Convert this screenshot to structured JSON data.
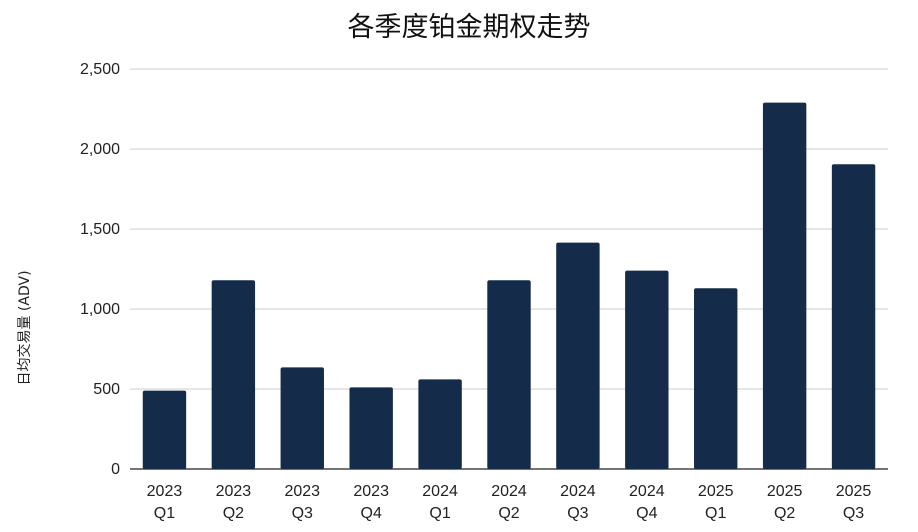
{
  "chart_data": {
    "type": "bar",
    "title": "各季度铂金期权走势",
    "xlabel": "",
    "ylabel": "日均交易量 (ADV)",
    "categories": [
      [
        "2023",
        "Q1"
      ],
      [
        "2023",
        "Q2"
      ],
      [
        "2023",
        "Q3"
      ],
      [
        "2023",
        "Q4"
      ],
      [
        "2024",
        "Q1"
      ],
      [
        "2024",
        "Q2"
      ],
      [
        "2024",
        "Q3"
      ],
      [
        "2024",
        "Q4"
      ],
      [
        "2025",
        "Q1"
      ],
      [
        "2025",
        "Q2"
      ],
      [
        "2025",
        "Q3"
      ]
    ],
    "values": [
      490,
      1180,
      635,
      510,
      560,
      1180,
      1415,
      1240,
      1130,
      2290,
      1905
    ],
    "ylim": [
      0,
      2500
    ],
    "yticks": [
      0,
      500,
      1000,
      1500,
      2000,
      2500
    ],
    "ytick_labels": [
      "0",
      "500",
      "1,000",
      "1,500",
      "2,000",
      "2,500"
    ],
    "grid": true,
    "legend": "none",
    "bar_color": "#152b4a",
    "grid_color": "#cccccc"
  }
}
